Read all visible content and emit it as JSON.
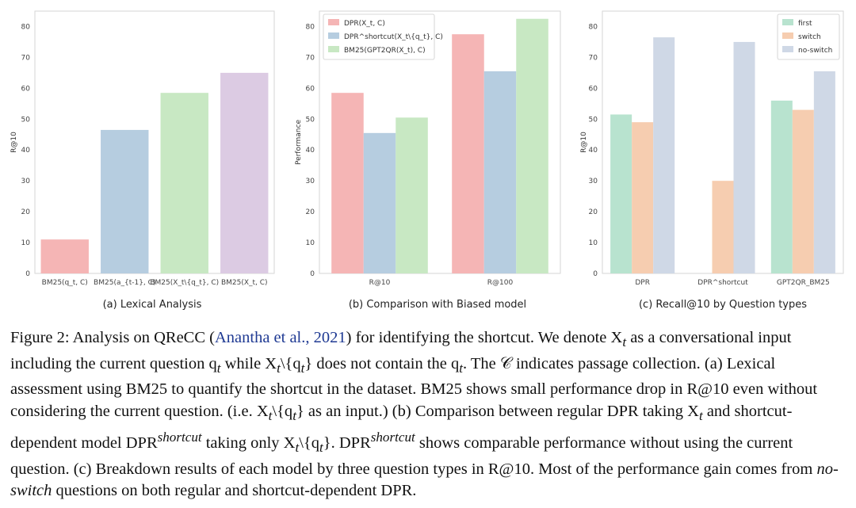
{
  "chart_data": [
    {
      "type": "bar",
      "subcaption": "(a) Lexical Analysis",
      "ylabel": "R@10",
      "ylim": [
        0,
        85
      ],
      "yticks": [
        0,
        10,
        20,
        30,
        40,
        50,
        60,
        70,
        80
      ],
      "categories": [
        "BM25(q_t, C)",
        "BM25(a_{t-1}, C)",
        "BM25(X_t\\{q_t}, C)",
        "BM25(X_t, C)"
      ],
      "values": [
        11,
        46.5,
        58.5,
        65
      ],
      "colors": [
        "#f5b5b5",
        "#b6cde0",
        "#c8e8c3",
        "#dccbe3"
      ]
    },
    {
      "type": "bar",
      "subcaption": "(b) Comparison with Biased model",
      "ylabel": "Performance",
      "ylim": [
        0,
        85
      ],
      "yticks": [
        0,
        10,
        20,
        30,
        40,
        50,
        60,
        70,
        80
      ],
      "categories": [
        "R@10",
        "R@100"
      ],
      "series": [
        {
          "name": "DPR(X_t, C)",
          "values": [
            58.5,
            77.5
          ],
          "color": "#f5b5b5"
        },
        {
          "name": "DPR^shortcut(X_t\\{q_t}, C)",
          "values": [
            45.5,
            65.5
          ],
          "color": "#b6cde0"
        },
        {
          "name": "BM25(GPT2QR(X_t), C)",
          "values": [
            50.5,
            82.5
          ],
          "color": "#c8e8c3"
        }
      ],
      "legend": "top-left"
    },
    {
      "type": "bar",
      "subcaption": "(c) Recall@10 by Question types",
      "ylabel": "R@10",
      "ylim": [
        0,
        85
      ],
      "yticks": [
        0,
        10,
        20,
        30,
        40,
        50,
        60,
        70,
        80
      ],
      "categories": [
        "DPR",
        "DPR^shortcut",
        "GPT2QR_BM25"
      ],
      "series": [
        {
          "name": "first",
          "values": [
            51.5,
            null,
            56
          ],
          "color": "#b8e3cf"
        },
        {
          "name": "switch",
          "values": [
            49,
            30,
            53
          ],
          "color": "#f6cdb0"
        },
        {
          "name": "no-switch",
          "values": [
            76.5,
            75,
            65.5
          ],
          "color": "#cfd8e6"
        }
      ],
      "legend": "top-right"
    }
  ],
  "caption": {
    "label": "Figure 2:",
    "text_before_cite": "Analysis on QReCC (",
    "cite_author": "Anantha et al.",
    "cite_year": "2021",
    "text_after_cite": ") for identifying the shortcut. We denote X",
    "sub_t": "t",
    "rest_line1": " as a conversational input including the current question q",
    "rest_line2": " while X",
    "rest_line3": "\\{q",
    "rest_line4": "} does not contain the q",
    "rest_line5": ". The 𝒞 indicates passage collection. (a) Lexical assessment using BM25 to quantify the shortcut in the dataset. BM25 shows small performance drop in R@10 even without considering the current question. (i.e. X",
    "rest_line6": "\\{q",
    "rest_line7": "} as an input.) (b) Comparison between regular DPR taking X",
    "rest_line8": " and shortcut-dependent model DPR",
    "sup_shortcut": "shortcut",
    "rest_line9": " taking only X",
    "rest_line10": "\\{q",
    "rest_line11": "}. DPR",
    "rest_line12": " shows comparable performance without using the current question. (c) Breakdown results of each model by three question types in R@10. Most of the performance gain comes from ",
    "emph": "no-switch",
    "rest_line13": " questions on both regular and shortcut-dependent DPR."
  }
}
